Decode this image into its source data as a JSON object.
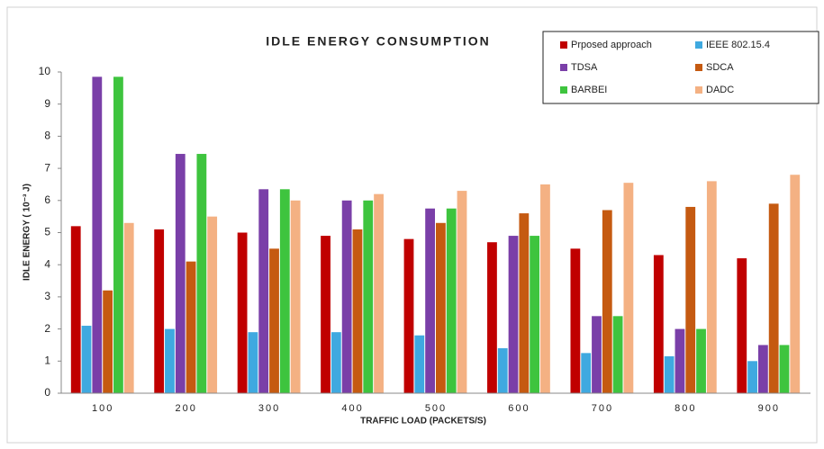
{
  "chart_data": {
    "type": "bar",
    "title": "IDLE ENERGY CONSUMPTION",
    "x_label": "TRAFFIC LOAD (PACKETS/S)",
    "y_label": "IDLE ENERGY ( 10⁻³ J)",
    "categories": [
      "100",
      "200",
      "300",
      "400",
      "500",
      "600",
      "700",
      "800",
      "900"
    ],
    "series": [
      {
        "name": "Prposed approach",
        "color": "#c00000",
        "values": [
          5.2,
          5.1,
          5.0,
          4.9,
          4.8,
          4.7,
          4.5,
          4.3,
          4.2
        ]
      },
      {
        "name": "IEEE 802.15.4",
        "color": "#3fa9e0",
        "values": [
          2.1,
          2.0,
          1.9,
          1.9,
          1.8,
          1.4,
          1.25,
          1.15,
          1.0
        ]
      },
      {
        "name": "TDSA",
        "color": "#7a3fa8",
        "values": [
          9.85,
          7.45,
          6.35,
          6.0,
          5.75,
          4.9,
          2.4,
          2.0,
          1.5
        ]
      },
      {
        "name": "SDCA",
        "color": "#c55a11",
        "values": [
          3.2,
          4.1,
          4.5,
          5.1,
          5.3,
          5.6,
          5.7,
          5.8,
          5.9
        ]
      },
      {
        "name": "BARBEI",
        "color": "#3ec43e",
        "values": [
          9.85,
          7.45,
          6.35,
          6.0,
          5.75,
          4.9,
          2.4,
          2.0,
          1.5
        ]
      },
      {
        "name": "DADC",
        "color": "#f4b183",
        "values": [
          5.3,
          5.5,
          6.0,
          6.2,
          6.3,
          6.5,
          6.55,
          6.6,
          6.8
        ]
      }
    ],
    "ylim": [
      0,
      10
    ],
    "yticks": [
      0,
      1,
      2,
      3,
      4,
      5,
      6,
      7,
      8,
      9,
      10
    ],
    "grid": false
  }
}
